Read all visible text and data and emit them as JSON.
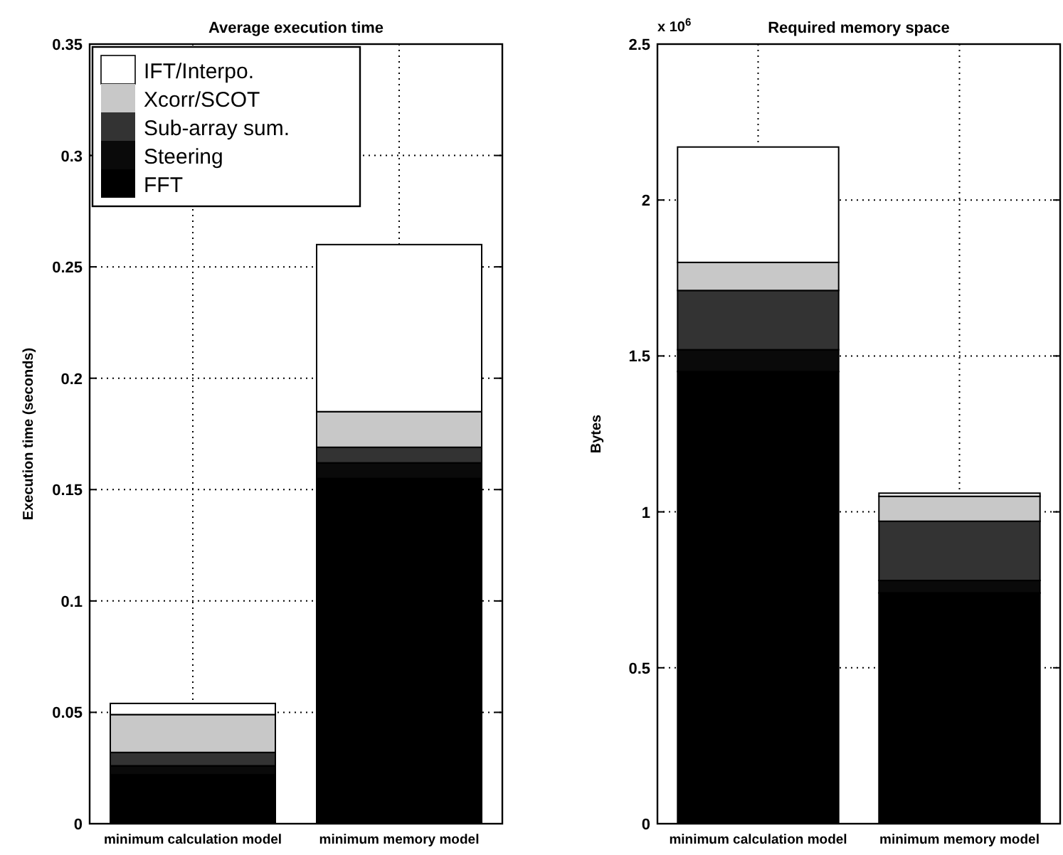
{
  "chart_data": [
    {
      "type": "bar",
      "title": "Average execution time",
      "ylabel": "Execution time (seconds)",
      "categories": [
        "minimum calculation model",
        "minimum memory model"
      ],
      "stacked": true,
      "ylim": [
        0,
        0.35
      ],
      "yticks": [
        0,
        0.05,
        0.1,
        0.15,
        0.2,
        0.25,
        0.3,
        0.35
      ],
      "grid": true,
      "legend": "top left",
      "series": [
        {
          "name": "FFT",
          "color": "#000000",
          "values": [
            0.022,
            0.155
          ]
        },
        {
          "name": "Steering",
          "color": "#0a0a0a",
          "values": [
            0.004,
            0.007
          ]
        },
        {
          "name": "Sub-array sum.",
          "color": "#333333",
          "values": [
            0.006,
            0.007
          ]
        },
        {
          "name": "Xcorr/SCOT",
          "color": "#c8c8c8",
          "values": [
            0.017,
            0.016
          ]
        },
        {
          "name": "IFT/Interpo.",
          "color": "#ffffff",
          "values": [
            0.005,
            0.075
          ]
        }
      ]
    },
    {
      "type": "bar",
      "title": "Required memory space",
      "ylabel": "Bytes",
      "annotations": [
        "x 10$^{6}$"
      ],
      "categories": [
        "minimum calculation model",
        "minimum memory model"
      ],
      "stacked": true,
      "ylim": [
        0,
        2.5
      ],
      "yticks": [
        0,
        0.5,
        1,
        1.5,
        2,
        2.5
      ],
      "grid": true,
      "series": [
        {
          "color": "#000000",
          "values": [
            1.45,
            0.74
          ]
        },
        {
          "color": "#0a0a0a",
          "values": [
            0.07,
            0.04
          ]
        },
        {
          "color": "#333333",
          "values": [
            0.19,
            0.19
          ]
        },
        {
          "color": "#c8c8c8",
          "values": [
            0.09,
            0.08
          ]
        },
        {
          "color": "#ffffff",
          "values": [
            0.37,
            0.01
          ]
        }
      ]
    }
  ]
}
